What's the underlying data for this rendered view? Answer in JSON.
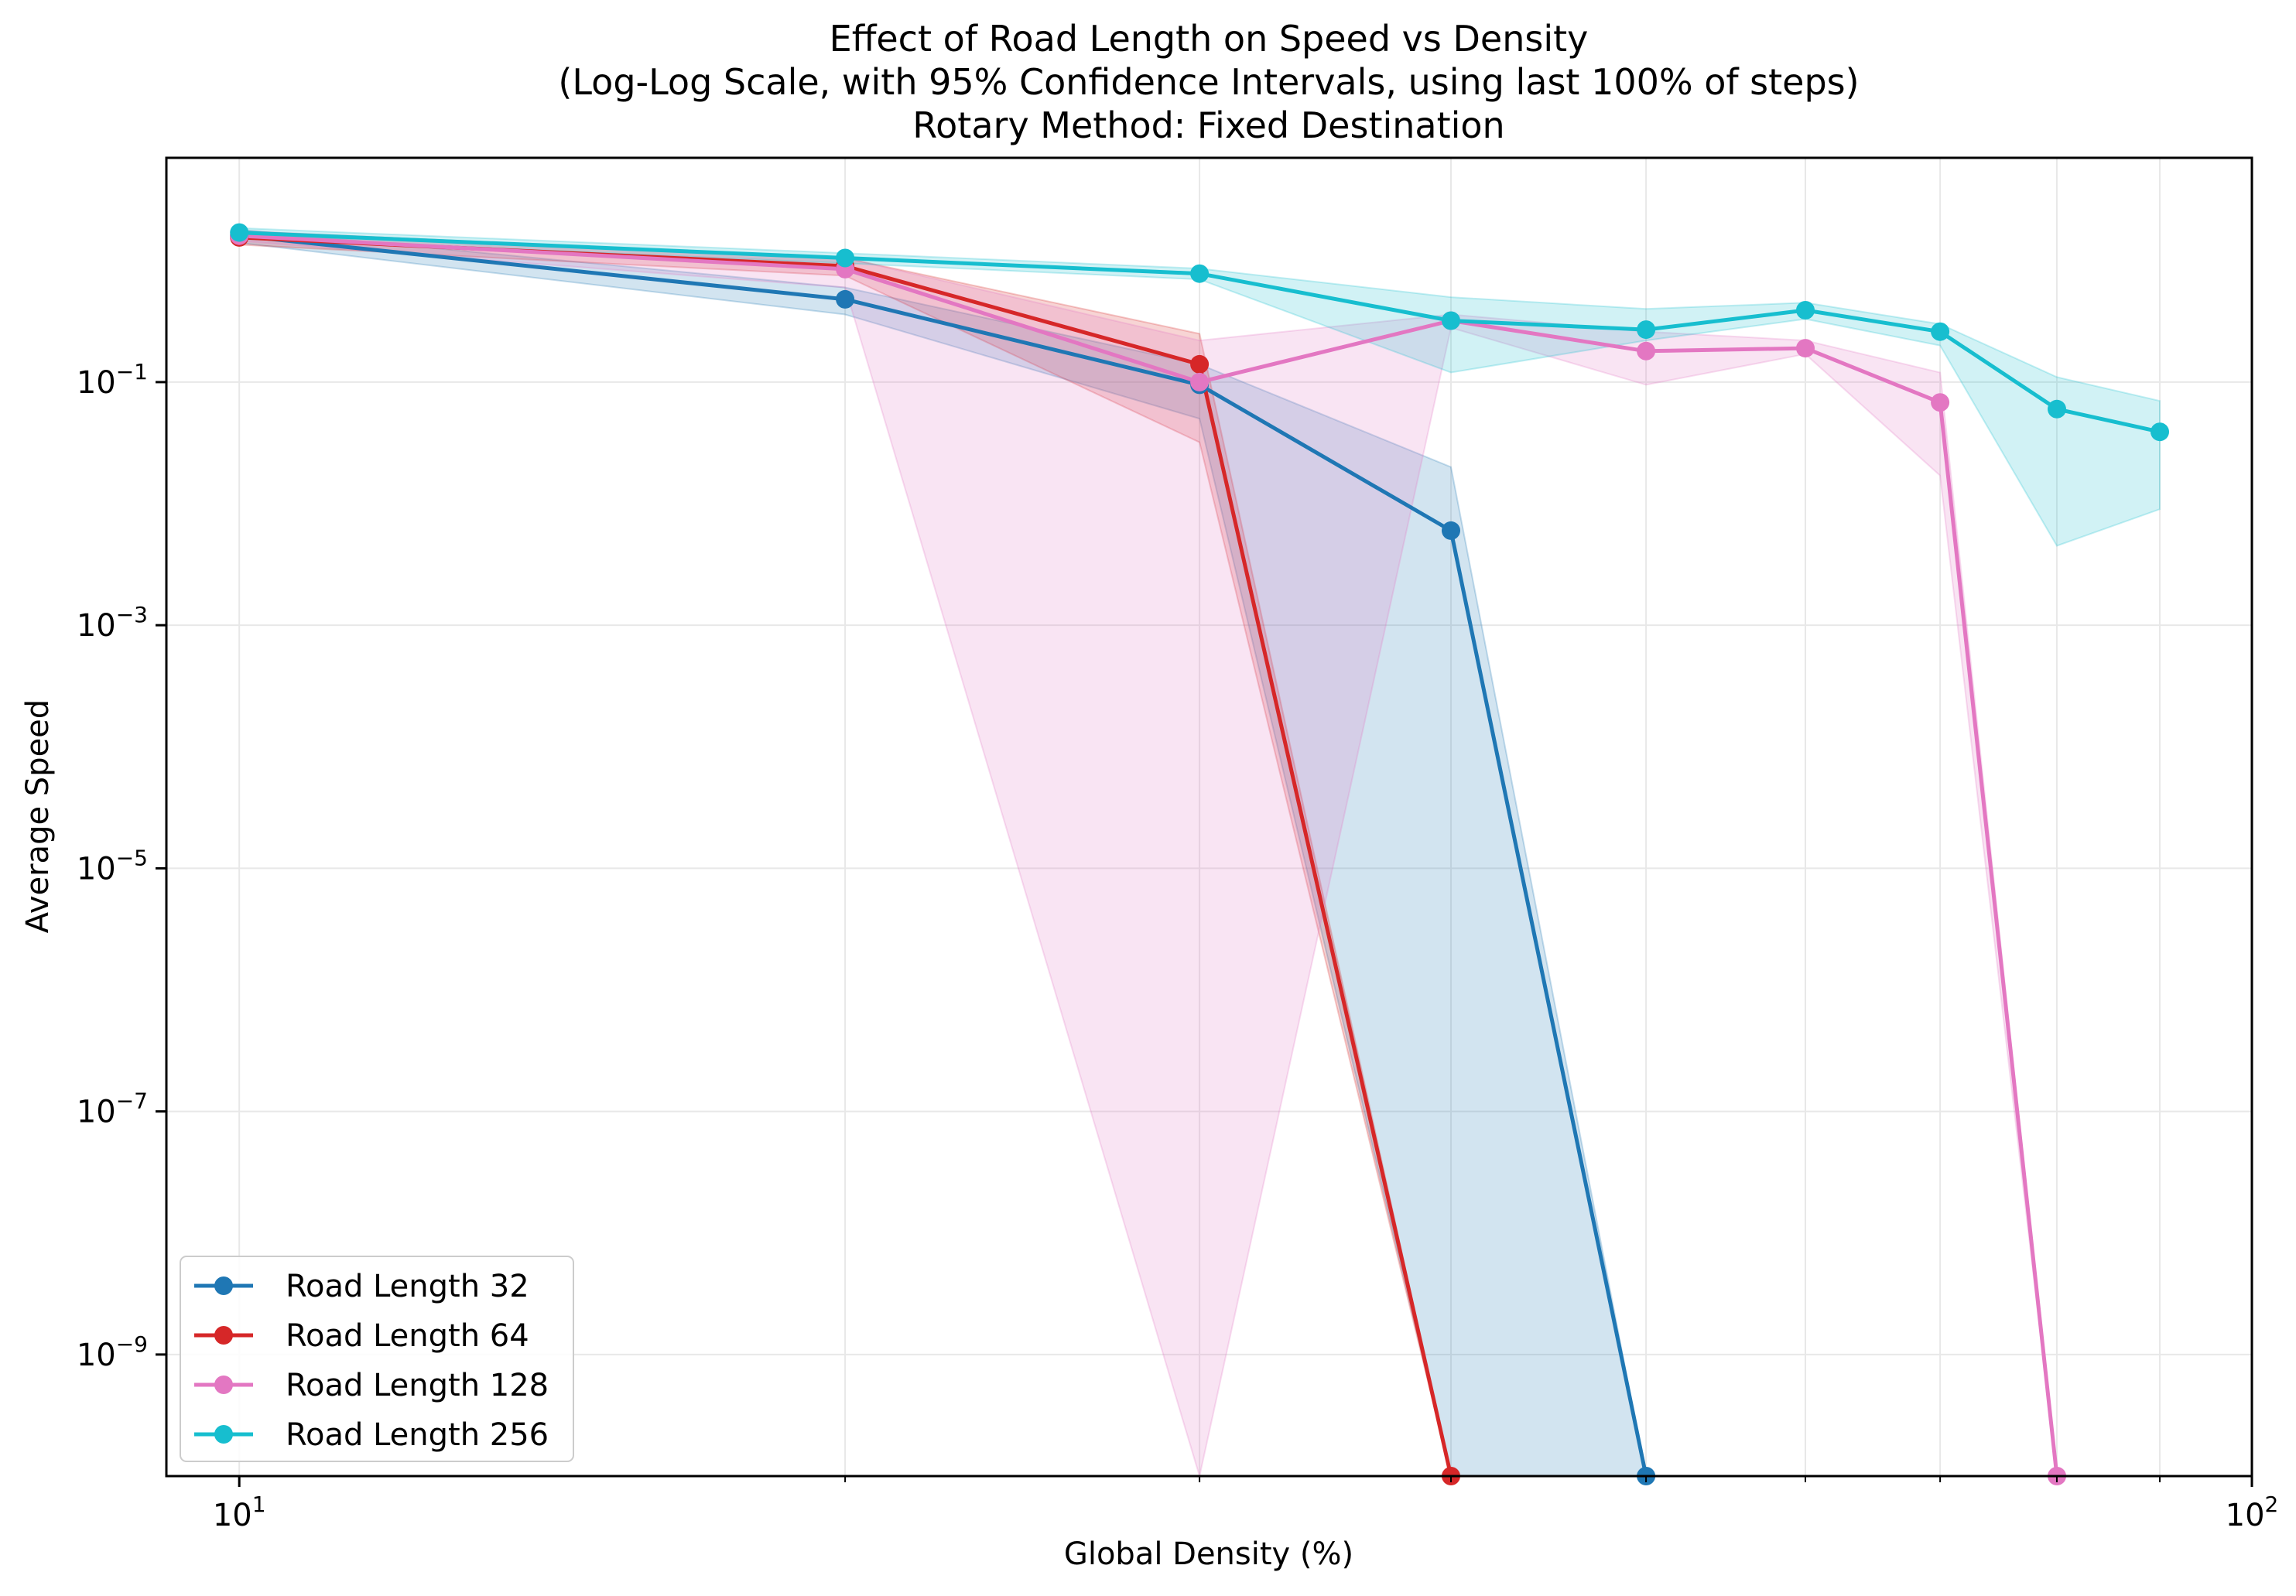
{
  "chart_data": {
    "type": "line",
    "title_lines": [
      "Effect of Road Length on Speed vs Density",
      "(Log-Log Scale, with 95% Confidence Intervals, using last 100% of steps)",
      "Rotary Method: Fixed Destination"
    ],
    "xlabel": "Global Density (%)",
    "ylabel": "Average Speed",
    "x_scale": "log",
    "y_scale": "log",
    "xlim": [
      9.2,
      100
    ],
    "ylim": [
      1e-10,
      7
    ],
    "x_ticks": [
      {
        "value": 10,
        "base": "10",
        "exp": "1"
      },
      {
        "value": 100,
        "base": "10",
        "exp": "2"
      }
    ],
    "x_minor_ticks": [
      20,
      30,
      40,
      50,
      60,
      70,
      80,
      90
    ],
    "y_ticks": [
      {
        "value": 1e-09,
        "base": "10",
        "exp": "−9"
      },
      {
        "value": 1e-07,
        "base": "10",
        "exp": "−7"
      },
      {
        "value": 1e-05,
        "base": "10",
        "exp": "−5"
      },
      {
        "value": 0.001,
        "base": "10",
        "exp": "−3"
      },
      {
        "value": 0.1,
        "base": "10",
        "exp": "−1"
      }
    ],
    "grid": true,
    "legend_position": "lower-left",
    "series": [
      {
        "name": "Road Length 32",
        "color": "#1f77b4",
        "x": [
          10,
          20,
          30,
          40,
          50
        ],
        "y": [
          1.6,
          0.48,
          0.095,
          0.006,
          1e-10
        ],
        "ci_lower": [
          1.4,
          0.36,
          0.05,
          1e-10,
          1e-10
        ],
        "ci_upper": [
          1.8,
          0.6,
          0.14,
          0.02,
          1e-10
        ]
      },
      {
        "name": "Road Length 64",
        "color": "#d62728",
        "x": [
          10,
          20,
          30,
          40
        ],
        "y": [
          1.55,
          0.9,
          0.14,
          1e-10
        ],
        "ci_lower": [
          1.35,
          0.75,
          0.032,
          1e-10
        ],
        "ci_upper": [
          1.75,
          1.05,
          0.25,
          1e-10
        ]
      },
      {
        "name": "Road Length 128",
        "color": "#e377c2",
        "x": [
          10,
          20,
          30,
          40,
          50,
          60,
          70,
          80
        ],
        "y": [
          1.6,
          0.85,
          0.1,
          0.32,
          0.18,
          0.19,
          0.068,
          1e-10
        ],
        "ci_lower": [
          1.45,
          0.6,
          1e-10,
          0.28,
          0.095,
          0.17,
          0.017,
          1e-10
        ],
        "ci_upper": [
          1.75,
          1.05,
          0.22,
          0.36,
          0.26,
          0.22,
          0.12,
          1e-10
        ]
      },
      {
        "name": "Road Length 256",
        "color": "#17becf",
        "x": [
          10,
          20,
          30,
          40,
          50,
          60,
          70,
          80,
          90
        ],
        "y": [
          1.7,
          1.05,
          0.78,
          0.32,
          0.27,
          0.39,
          0.26,
          0.06,
          0.039
        ],
        "ci_lower": [
          1.55,
          0.95,
          0.7,
          0.12,
          0.22,
          0.33,
          0.2,
          0.0045,
          0.009
        ],
        "ci_upper": [
          1.85,
          1.15,
          0.86,
          0.5,
          0.4,
          0.45,
          0.3,
          0.11,
          0.07
        ]
      }
    ]
  }
}
